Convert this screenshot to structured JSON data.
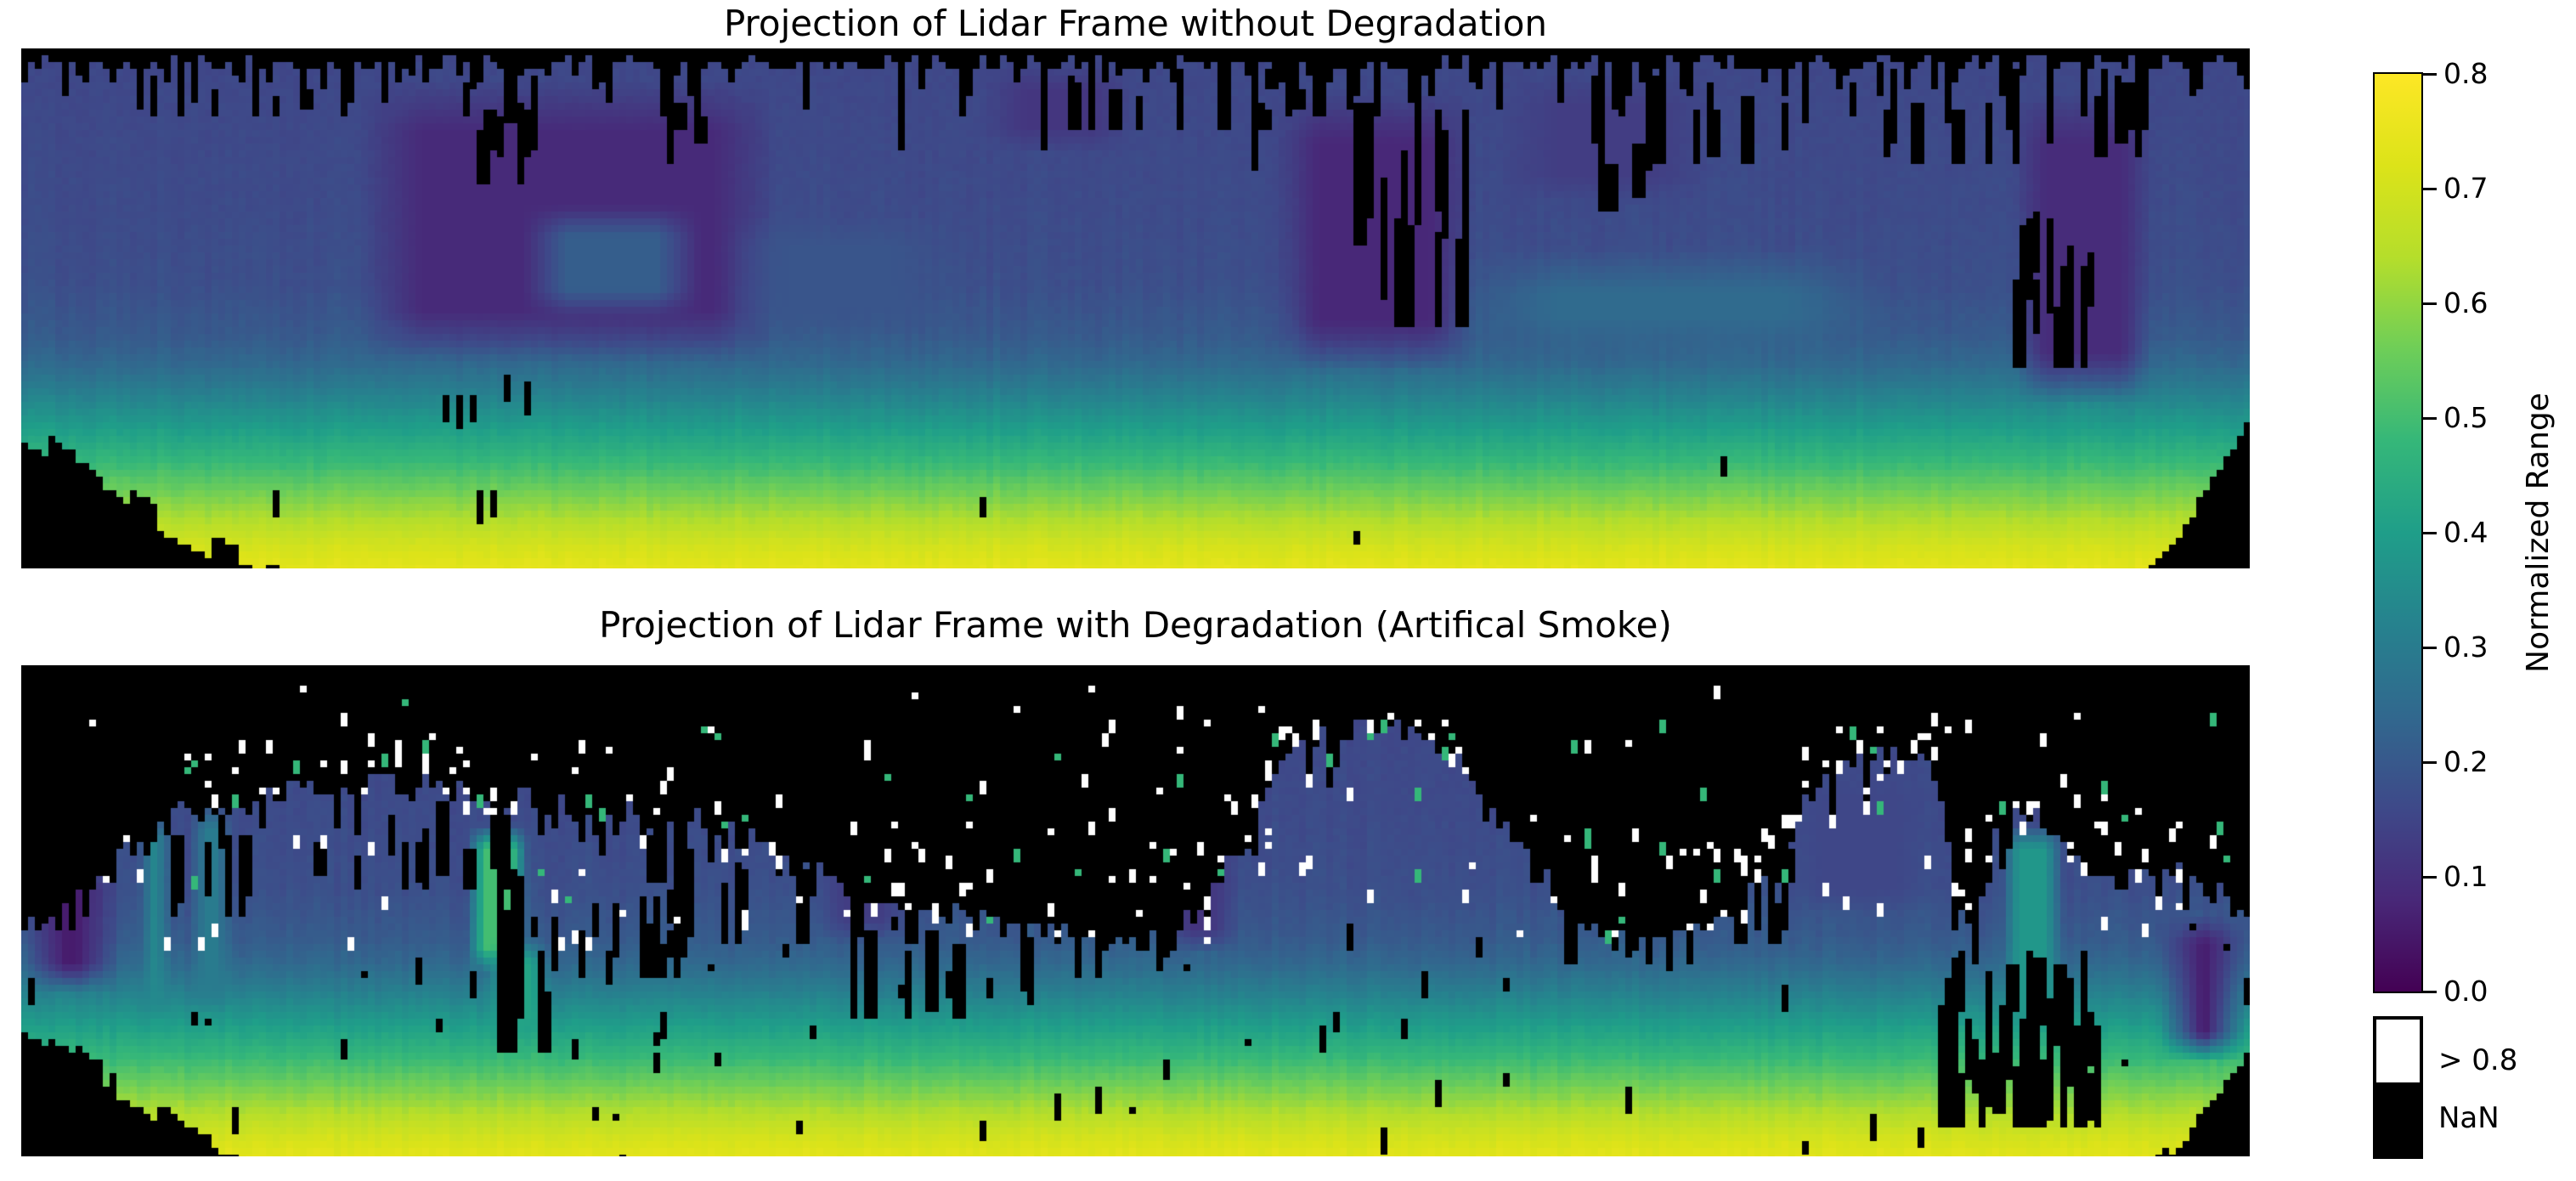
{
  "colorbar": {
    "label": "Normalized Range",
    "vmin": 0.0,
    "vmax": 0.8,
    "ticks": [
      {
        "label": "0.8",
        "value": 0.8
      },
      {
        "label": "0.7",
        "value": 0.7
      },
      {
        "label": "0.6",
        "value": 0.6
      },
      {
        "label": "0.5",
        "value": 0.5
      },
      {
        "label": "0.4",
        "value": 0.4
      },
      {
        "label": "0.3",
        "value": 0.3
      },
      {
        "label": "0.2",
        "value": 0.2
      },
      {
        "label": "0.1",
        "value": 0.1
      },
      {
        "label": "0.0",
        "value": 0.0
      }
    ]
  },
  "legend": {
    "items": [
      {
        "name": "over",
        "label": "> 0.8",
        "color": "#ffffff"
      },
      {
        "name": "nan",
        "label": "NaN",
        "color": "#000000"
      }
    ]
  },
  "colors": {
    "background": "#ffffff",
    "text": "#000000",
    "nan": "#000000",
    "over": "#ffffff",
    "speckle_teal": "#35b779"
  },
  "viridis_stops": [
    [
      0.0,
      "#440154"
    ],
    [
      0.1,
      "#482878"
    ],
    [
      0.2,
      "#3e4989"
    ],
    [
      0.3,
      "#31688e"
    ],
    [
      0.4,
      "#26828e"
    ],
    [
      0.5,
      "#1f9e89"
    ],
    [
      0.6,
      "#35b779"
    ],
    [
      0.7,
      "#6ece58"
    ],
    [
      0.8,
      "#b5de2b"
    ],
    [
      0.9,
      "#dce319"
    ],
    [
      1.0,
      "#fde725"
    ]
  ],
  "chart_data": [
    {
      "type": "heatmap",
      "title": "Projection of Lidar Frame without Degradation",
      "colormap": "viridis",
      "vmin": 0.0,
      "vmax": 0.8,
      "nan_color": "#000000",
      "over_color": "#ffffff",
      "seed": 7,
      "cell": 8,
      "profile": [
        [
          0.0,
          0.155
        ],
        [
          0.3,
          0.165
        ],
        [
          0.45,
          0.175
        ],
        [
          0.55,
          0.205
        ],
        [
          0.6,
          0.24
        ],
        [
          0.65,
          0.3
        ],
        [
          0.7,
          0.365
        ],
        [
          0.75,
          0.43
        ],
        [
          0.8,
          0.495
        ],
        [
          0.85,
          0.565
        ],
        [
          0.9,
          0.635
        ],
        [
          0.95,
          0.7
        ],
        [
          1.0,
          0.745
        ]
      ],
      "fringe": {
        "base": 0.012,
        "jitter": 0.03,
        "spike_prob": 0.3,
        "spike": 0.06,
        "deep_prob": 0.1,
        "deep": 0.16,
        "rare_prob": 0.03,
        "rare": 0.14
      },
      "patches": [
        {
          "x0": 0.15,
          "x1": 0.34,
          "y0": 0.06,
          "y1": 0.6,
          "v": 0.085,
          "fx": 0.03,
          "fy": 0.1
        },
        {
          "x0": 0.225,
          "x1": 0.305,
          "y0": 0.3,
          "y1": 0.52,
          "v": 0.215,
          "fx": 0.02,
          "fy": 0.06
        },
        {
          "x0": 0.315,
          "x1": 0.42,
          "y0": 0.32,
          "y1": 0.55,
          "v": 0.19,
          "fx": 0.03,
          "fy": 0.06
        },
        {
          "x0": 0.43,
          "x1": 0.5,
          "y0": 0.03,
          "y1": 0.2,
          "v": 0.115,
          "fx": 0.02,
          "fy": 0.05
        },
        {
          "x0": 0.562,
          "x1": 0.652,
          "y0": 0.08,
          "y1": 0.62,
          "v": 0.08,
          "fx": 0.02,
          "fy": 0.1
        },
        {
          "x0": 0.66,
          "x1": 0.76,
          "y0": 0.05,
          "y1": 0.3,
          "v": 0.13,
          "fx": 0.03,
          "fy": 0.06
        },
        {
          "x0": 0.64,
          "x1": 0.84,
          "y0": 0.38,
          "y1": 0.6,
          "v": 0.25,
          "fx": 0.05,
          "fy": 0.09
        },
        {
          "x0": 0.893,
          "x1": 0.957,
          "y0": 0.08,
          "y1": 0.68,
          "v": 0.09,
          "fx": 0.015,
          "fy": 0.1
        }
      ],
      "blobs": [
        {
          "x0": 0.205,
          "x1": 0.24,
          "y0": 0.035,
          "y1": 0.25,
          "density": 0.7
        },
        {
          "x0": 0.287,
          "x1": 0.303,
          "y0": 0.035,
          "y1": 0.18,
          "density": 0.7
        },
        {
          "x0": 0.05,
          "x1": 0.2,
          "y0": 0.02,
          "y1": 0.12,
          "density": 0.3
        },
        {
          "x0": 0.45,
          "x1": 0.6,
          "y0": 0.03,
          "y1": 0.15,
          "density": 0.25
        },
        {
          "x0": 0.598,
          "x1": 0.652,
          "y0": 0.1,
          "y1": 0.52,
          "density": 0.55
        },
        {
          "x0": 0.703,
          "x1": 0.733,
          "y0": 0.035,
          "y1": 0.3,
          "density": 0.6
        },
        {
          "x0": 0.75,
          "x1": 0.9,
          "y0": 0.03,
          "y1": 0.22,
          "density": 0.3
        },
        {
          "x0": 0.895,
          "x1": 0.928,
          "y0": 0.28,
          "y1": 0.6,
          "density": 0.75
        },
        {
          "x0": 0.932,
          "x1": 0.952,
          "y0": 0.04,
          "y1": 0.2,
          "density": 0.5
        }
      ],
      "corners": [
        {
          "side": "bl",
          "w": 0.118,
          "h": 0.28
        },
        {
          "side": "br",
          "w": 0.052,
          "h": 0.3
        }
      ],
      "dashes": [
        [
          0.19,
          0.665,
          4
        ],
        [
          0.196,
          0.67,
          5
        ],
        [
          0.202,
          0.665,
          4
        ],
        [
          0.219,
          0.635,
          4
        ],
        [
          0.226,
          0.64,
          5
        ],
        [
          0.113,
          0.855,
          4
        ],
        [
          0.205,
          0.85,
          5
        ],
        [
          0.212,
          0.855,
          4
        ],
        [
          0.43,
          0.87,
          3
        ],
        [
          0.6,
          0.93,
          2
        ],
        [
          0.765,
          0.79,
          3
        ]
      ]
    },
    {
      "type": "heatmap",
      "title": "Projection of Lidar Frame with Degradation (Artifical Smoke)",
      "colormap": "viridis",
      "vmin": 0.0,
      "vmax": 0.8,
      "nan_color": "#000000",
      "over_color": "#ffffff",
      "seed": 13,
      "cell": 8,
      "profile": [
        [
          0.0,
          0.155
        ],
        [
          0.3,
          0.165
        ],
        [
          0.45,
          0.175
        ],
        [
          0.55,
          0.205
        ],
        [
          0.6,
          0.24
        ],
        [
          0.65,
          0.3
        ],
        [
          0.7,
          0.365
        ],
        [
          0.75,
          0.43
        ],
        [
          0.8,
          0.495
        ],
        [
          0.85,
          0.565
        ],
        [
          0.9,
          0.635
        ],
        [
          0.95,
          0.7
        ],
        [
          1.0,
          0.745
        ]
      ],
      "skyline": [
        [
          0.0,
          0.54
        ],
        [
          0.015,
          0.5
        ],
        [
          0.03,
          0.44
        ],
        [
          0.05,
          0.36
        ],
        [
          0.07,
          0.3
        ],
        [
          0.1,
          0.27
        ],
        [
          0.13,
          0.25
        ],
        [
          0.17,
          0.235
        ],
        [
          0.2,
          0.25
        ],
        [
          0.23,
          0.27
        ],
        [
          0.26,
          0.295
        ],
        [
          0.3,
          0.3
        ],
        [
          0.33,
          0.36
        ],
        [
          0.355,
          0.4
        ],
        [
          0.375,
          0.46
        ],
        [
          0.395,
          0.49
        ],
        [
          0.42,
          0.5
        ],
        [
          0.445,
          0.52
        ],
        [
          0.465,
          0.54
        ],
        [
          0.49,
          0.555
        ],
        [
          0.515,
          0.56
        ],
        [
          0.53,
          0.48
        ],
        [
          0.545,
          0.38
        ],
        [
          0.557,
          0.28
        ],
        [
          0.567,
          0.2
        ],
        [
          0.578,
          0.15
        ],
        [
          0.59,
          0.13
        ],
        [
          0.61,
          0.13
        ],
        [
          0.625,
          0.15
        ],
        [
          0.64,
          0.19
        ],
        [
          0.655,
          0.25
        ],
        [
          0.668,
          0.33
        ],
        [
          0.682,
          0.42
        ],
        [
          0.695,
          0.5
        ],
        [
          0.71,
          0.55
        ],
        [
          0.73,
          0.57
        ],
        [
          0.75,
          0.54
        ],
        [
          0.765,
          0.5
        ],
        [
          0.78,
          0.42
        ],
        [
          0.795,
          0.32
        ],
        [
          0.805,
          0.24
        ],
        [
          0.815,
          0.2
        ],
        [
          0.825,
          0.185
        ],
        [
          0.845,
          0.18
        ],
        [
          0.857,
          0.2
        ],
        [
          0.863,
          0.28
        ],
        [
          0.868,
          0.52
        ],
        [
          0.876,
          0.5
        ],
        [
          0.885,
          0.35
        ],
        [
          0.893,
          0.31
        ],
        [
          0.905,
          0.3
        ],
        [
          0.915,
          0.34
        ],
        [
          0.925,
          0.4
        ],
        [
          0.94,
          0.435
        ],
        [
          0.955,
          0.42
        ],
        [
          0.97,
          0.43
        ],
        [
          0.985,
          0.46
        ],
        [
          1.0,
          0.49
        ]
      ],
      "patches": [
        {
          "x0": 0.0,
          "x1": 0.045,
          "y0": 0.4,
          "y1": 0.66,
          "v": 0.055,
          "fx": 0.02,
          "fy": 0.06
        },
        {
          "x0": 0.052,
          "x1": 0.068,
          "y0": 0.3,
          "y1": 0.72,
          "v": 0.34,
          "fx": 0.008,
          "fy": 0.05
        },
        {
          "x0": 0.075,
          "x1": 0.095,
          "y0": 0.28,
          "y1": 0.7,
          "v": 0.3,
          "fx": 0.008,
          "fy": 0.05
        },
        {
          "x0": 0.2,
          "x1": 0.228,
          "y0": 0.32,
          "y1": 0.62,
          "v": 0.5,
          "fx": 0.008,
          "fy": 0.05
        },
        {
          "x0": 0.208,
          "x1": 0.238,
          "y0": 0.55,
          "y1": 0.76,
          "v": 0.42,
          "fx": 0.01,
          "fy": 0.05
        },
        {
          "x0": 0.355,
          "x1": 0.4,
          "y0": 0.3,
          "y1": 0.56,
          "v": 0.13,
          "fx": 0.015,
          "fy": 0.05
        },
        {
          "x0": 0.51,
          "x1": 0.548,
          "y0": 0.35,
          "y1": 0.58,
          "v": 0.11,
          "fx": 0.015,
          "fy": 0.05
        },
        {
          "x0": 0.79,
          "x1": 0.86,
          "y0": 0.22,
          "y1": 0.5,
          "v": 0.155,
          "fx": 0.02,
          "fy": 0.05
        },
        {
          "x0": 0.888,
          "x1": 0.916,
          "y0": 0.32,
          "y1": 0.74,
          "v": 0.38,
          "fx": 0.008,
          "fy": 0.05
        },
        {
          "x0": 0.958,
          "x1": 1.0,
          "y0": 0.5,
          "y1": 0.8,
          "v": 0.06,
          "fx": 0.02,
          "fy": 0.06
        }
      ],
      "blobs": [
        {
          "x0": 0.04,
          "x1": 0.1,
          "y0": 0.28,
          "y1": 0.5,
          "density": 0.25
        },
        {
          "x0": 0.13,
          "x1": 0.3,
          "y0": 0.24,
          "y1": 0.45,
          "density": 0.3
        },
        {
          "x0": 0.195,
          "x1": 0.245,
          "y0": 0.33,
          "y1": 0.78,
          "density": 0.5
        },
        {
          "x0": 0.25,
          "x1": 0.3,
          "y0": 0.45,
          "y1": 0.62,
          "density": 0.3
        },
        {
          "x0": 0.3,
          "x1": 0.4,
          "y0": 0.33,
          "y1": 0.55,
          "density": 0.3
        },
        {
          "x0": 0.36,
          "x1": 0.46,
          "y0": 0.5,
          "y1": 0.7,
          "density": 0.35
        },
        {
          "x0": 0.465,
          "x1": 0.52,
          "y0": 0.52,
          "y1": 0.64,
          "density": 0.25
        },
        {
          "x0": 0.69,
          "x1": 0.75,
          "y0": 0.45,
          "y1": 0.6,
          "density": 0.3
        },
        {
          "x0": 0.7,
          "x1": 0.8,
          "y0": 0.28,
          "y1": 0.55,
          "density": 0.3
        },
        {
          "x0": 0.862,
          "x1": 0.932,
          "y0": 0.58,
          "y1": 0.93,
          "density": 0.92
        }
      ],
      "corners": [
        {
          "side": "bl",
          "w": 0.105,
          "h": 0.3
        },
        {
          "side": "br",
          "w": 0.05,
          "h": 0.24
        }
      ],
      "rand_dashes": {
        "count": 70,
        "y0": 0.5,
        "y1": 0.99
      },
      "speckles": {
        "count": 300,
        "x0": 0.03,
        "x1": 0.99,
        "y0": 0.04,
        "y1": 0.56,
        "teal_frac": 0.15
      }
    }
  ]
}
